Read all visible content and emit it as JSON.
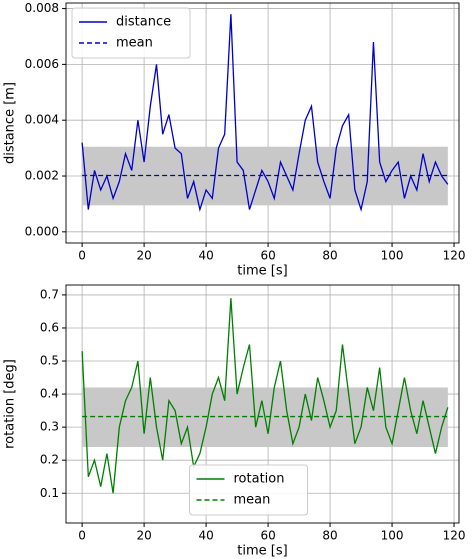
{
  "chart_data": [
    {
      "type": "line",
      "xlabel": "time [s]",
      "ylabel": "distance [m]",
      "x": [
        0,
        2,
        4,
        6,
        8,
        10,
        12,
        14,
        16,
        18,
        20,
        22,
        24,
        26,
        28,
        30,
        32,
        34,
        36,
        38,
        40,
        42,
        44,
        46,
        48,
        50,
        52,
        54,
        56,
        58,
        60,
        62,
        64,
        66,
        68,
        70,
        72,
        74,
        76,
        78,
        80,
        82,
        84,
        86,
        88,
        90,
        92,
        94,
        96,
        98,
        100,
        102,
        104,
        106,
        108,
        110,
        112,
        114,
        116,
        118
      ],
      "series": [
        {
          "name": "distance",
          "color": "#0000cc",
          "dash": false,
          "values": [
            0.0032,
            0.0008,
            0.0022,
            0.0015,
            0.002,
            0.0012,
            0.0018,
            0.0028,
            0.0022,
            0.004,
            0.0025,
            0.0045,
            0.006,
            0.0035,
            0.0042,
            0.003,
            0.0028,
            0.0012,
            0.0018,
            0.0008,
            0.0015,
            0.0012,
            0.003,
            0.0035,
            0.0078,
            0.0025,
            0.0022,
            0.0008,
            0.0015,
            0.0022,
            0.0018,
            0.0012,
            0.0025,
            0.002,
            0.0015,
            0.0028,
            0.004,
            0.0045,
            0.0025,
            0.0018,
            0.0012,
            0.003,
            0.0038,
            0.0042,
            0.0015,
            0.0008,
            0.0018,
            0.0068,
            0.0025,
            0.0018,
            0.0022,
            0.0025,
            0.0012,
            0.002,
            0.0015,
            0.0028,
            0.0018,
            0.0025,
            0.002,
            0.0017
          ]
        },
        {
          "name": "mean",
          "color": "#0000cc",
          "dash": true,
          "x": [
            0,
            118
          ],
          "values": [
            0.00202,
            0.00202
          ]
        }
      ],
      "band": {
        "x": [
          0,
          118
        ],
        "lower": 0.00095,
        "upper": 0.00305,
        "color": "#c8c8c8"
      },
      "xlim": [
        -5.2,
        121.6
      ],
      "xticks": [
        0,
        20,
        40,
        60,
        80,
        100,
        120
      ],
      "ylim": [
        -0.0004,
        0.0082
      ],
      "yticks": [
        {
          "value": 0,
          "label": "0.000"
        },
        {
          "value": 0.002,
          "label": "0.002"
        },
        {
          "value": 0.004,
          "label": "0.004"
        },
        {
          "value": 0.006,
          "label": "0.006"
        },
        {
          "value": 0.008,
          "label": "0.008"
        }
      ],
      "grid": true,
      "legend": "upper left"
    },
    {
      "type": "line",
      "xlabel": "time [s]",
      "ylabel": "rotation [deg]",
      "x": [
        0,
        2,
        4,
        6,
        8,
        10,
        12,
        14,
        16,
        18,
        20,
        22,
        24,
        26,
        28,
        30,
        32,
        34,
        36,
        38,
        40,
        42,
        44,
        46,
        48,
        50,
        52,
        54,
        56,
        58,
        60,
        62,
        64,
        66,
        68,
        70,
        72,
        74,
        76,
        78,
        80,
        82,
        84,
        86,
        88,
        90,
        92,
        94,
        96,
        98,
        100,
        102,
        104,
        106,
        108,
        110,
        112,
        114,
        116,
        118
      ],
      "series": [
        {
          "name": "rotation",
          "color": "#007f00",
          "dash": false,
          "values": [
            0.53,
            0.15,
            0.2,
            0.12,
            0.22,
            0.1,
            0.3,
            0.38,
            0.42,
            0.5,
            0.28,
            0.45,
            0.3,
            0.2,
            0.38,
            0.35,
            0.25,
            0.3,
            0.18,
            0.22,
            0.3,
            0.4,
            0.45,
            0.38,
            0.69,
            0.4,
            0.48,
            0.55,
            0.3,
            0.38,
            0.28,
            0.42,
            0.5,
            0.35,
            0.25,
            0.3,
            0.4,
            0.32,
            0.45,
            0.38,
            0.3,
            0.35,
            0.55,
            0.4,
            0.25,
            0.3,
            0.42,
            0.35,
            0.48,
            0.3,
            0.25,
            0.35,
            0.45,
            0.35,
            0.28,
            0.38,
            0.3,
            0.22,
            0.3,
            0.36
          ]
        },
        {
          "name": "mean",
          "color": "#007f00",
          "dash": true,
          "x": [
            0,
            118
          ],
          "values": [
            0.332,
            0.332
          ]
        }
      ],
      "band": {
        "x": [
          0,
          118
        ],
        "lower": 0.24,
        "upper": 0.42,
        "color": "#c8c8c8"
      },
      "xlim": [
        -5.2,
        121.6
      ],
      "xticks": [
        0,
        20,
        40,
        60,
        80,
        100,
        120
      ],
      "ylim": [
        0.01,
        0.73
      ],
      "yticks": [
        0.1,
        0.2,
        0.3,
        0.4,
        0.5,
        0.6,
        0.7
      ],
      "grid": true,
      "legend": "lower center"
    }
  ]
}
